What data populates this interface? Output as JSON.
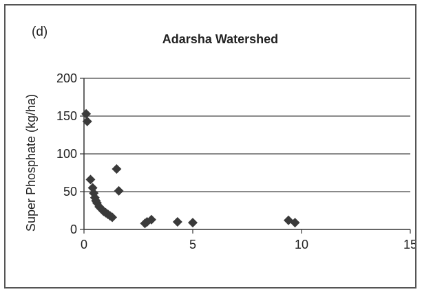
{
  "chart_data": {
    "type": "scatter",
    "panel_label": "(d)",
    "title": "Adarsha Watershed",
    "xlabel": "",
    "ylabel": "Super Phosphate (kg/ha)",
    "xlim": [
      0,
      15
    ],
    "ylim": [
      0,
      200
    ],
    "xticks": [
      0,
      5,
      10,
      15
    ],
    "yticks": [
      0,
      50,
      100,
      150,
      200
    ],
    "grid": "horizontal",
    "marker": "diamond",
    "marker_color": "#3a3a3a",
    "series": [
      {
        "x": [
          0.1,
          0.15,
          0.3,
          0.4,
          0.45,
          0.5,
          0.55,
          0.6,
          0.7,
          0.8,
          0.9,
          1.0,
          1.1,
          1.2,
          1.3,
          1.5,
          1.6,
          2.8,
          2.9,
          3.1,
          4.3,
          5.0,
          9.4,
          9.7
        ],
        "y": [
          153,
          143,
          66,
          55,
          48,
          42,
          38,
          35,
          30,
          27,
          24,
          22,
          20,
          18,
          16,
          80,
          51,
          8,
          10,
          13,
          10,
          9,
          12,
          9
        ]
      }
    ]
  }
}
